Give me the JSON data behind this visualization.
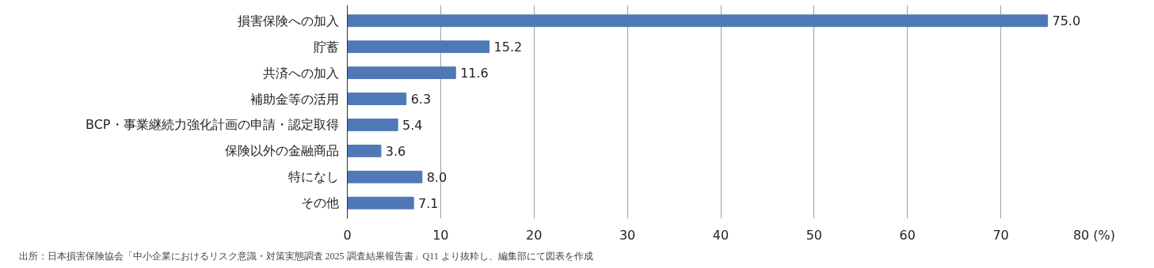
{
  "chart_data": {
    "type": "bar",
    "orientation": "horizontal",
    "categories": [
      "損害保険への加入",
      "貯蓄",
      "共済への加入",
      "補助金等の活用",
      "BCP・事業継続力強化計画の申請・認定取得",
      "保険以外の金融商品",
      "特になし",
      "その他"
    ],
    "values": [
      75.0,
      15.2,
      11.6,
      6.3,
      5.4,
      3.6,
      8.0,
      7.1
    ],
    "value_labels": [
      "75.0",
      "15.2",
      "11.6",
      "6.3",
      "5.4",
      "3.6",
      "8.0",
      "7.1"
    ],
    "color": "#4f79b6",
    "xlim": [
      0,
      80
    ],
    "xticks": [
      0,
      10,
      20,
      30,
      40,
      50,
      60,
      70,
      {
        "value": 80,
        "label": "80 (%)"
      }
    ],
    "grid": "x",
    "annotations": [
      "出所：日本損害保険協会「中小企業におけるリスク意識・対策実態調査 2025 調査結果報告書」Q11 より抜粋し、編集部にて図表を作成"
    ]
  }
}
